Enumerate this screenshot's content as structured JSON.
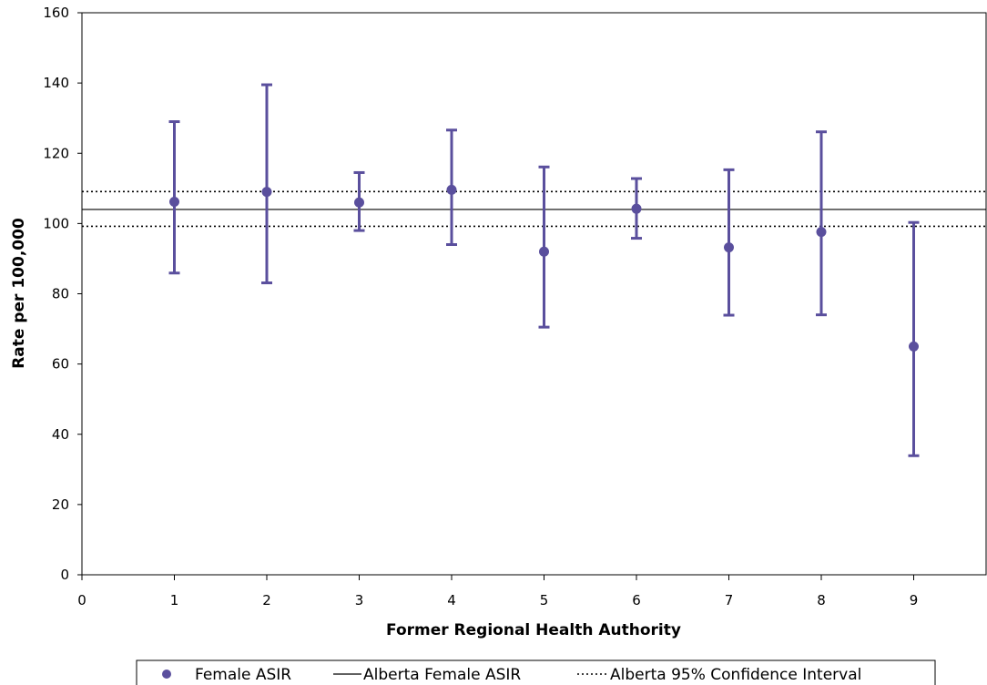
{
  "chart_data": {
    "type": "scatter",
    "title": "",
    "xlabel": "Former Regional Health Authority",
    "ylabel": "Rate per 100,000",
    "xlim": [
      0,
      9.75
    ],
    "ylim": [
      0,
      160
    ],
    "x_ticks": [
      0,
      1,
      2,
      3,
      4,
      5,
      6,
      7,
      8,
      9
    ],
    "y_ticks": [
      0,
      20,
      40,
      60,
      80,
      100,
      120,
      140,
      160
    ],
    "grid": false,
    "legend_position": "bottom",
    "series": [
      {
        "name": "Female ASIR",
        "kind": "points-with-error-bars",
        "color": "#5a4f9d",
        "x": [
          1,
          2,
          3,
          4,
          5,
          6,
          7,
          8,
          9
        ],
        "y": [
          106.2,
          109,
          106,
          109.6,
          92,
          104.2,
          93.2,
          97.6,
          65
        ],
        "lower": [
          85.9,
          83.1,
          98,
          94,
          70.5,
          95.8,
          73.9,
          74,
          33.9
        ],
        "upper": [
          129,
          139.5,
          114.5,
          126.6,
          116.1,
          112.8,
          115.3,
          126.1,
          100.3
        ]
      },
      {
        "name": "Alberta Female ASIR",
        "kind": "reference-line",
        "style": "solid",
        "color": "#000000",
        "y": 104
      },
      {
        "name": "Alberta 95% Confidence Interval",
        "kind": "reference-band",
        "style": "dotted",
        "color": "#000000",
        "y": [
          99.2,
          109.1
        ]
      }
    ]
  }
}
